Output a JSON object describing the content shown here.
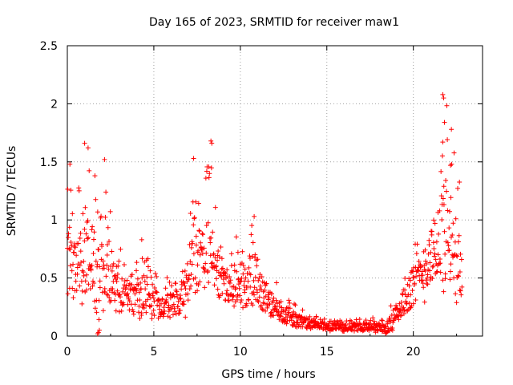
{
  "chart_data": {
    "type": "scatter",
    "title": "Day 165 of 2023, SRMTID for receiver maw1",
    "xlabel": "GPS time / hours",
    "ylabel": "SRMTID / TECUs",
    "xlim": [
      0,
      24
    ],
    "ylim": [
      0,
      2.5
    ],
    "x_ticks": [
      0,
      5,
      10,
      15,
      20
    ],
    "x_tick_labels": [
      "0",
      "5",
      "10",
      "15",
      "20"
    ],
    "y_ticks": [
      0,
      0.5,
      1,
      1.5,
      2,
      2.5
    ],
    "y_tick_labels": [
      "0",
      "0.5",
      "1",
      "1.5",
      "2",
      "2.5"
    ],
    "grid": true,
    "marker": "+",
    "series": [
      {
        "name": "SRMTID",
        "color": "#ff0000",
        "envelope": {
          "x": [
            0.0,
            0.5,
            1.0,
            1.3,
            1.8,
            2.2,
            2.7,
            3.5,
            4.0,
            4.5,
            5.0,
            6.0,
            6.8,
            7.3,
            7.8,
            8.2,
            8.6,
            9.2,
            10.0,
            10.8,
            11.5,
            12.5,
            13.5,
            14.5,
            15.5,
            16.5,
            17.5,
            18.4,
            18.8,
            19.5,
            20.0,
            20.5,
            21.0,
            21.5,
            21.9,
            22.3,
            22.8
          ],
          "low": [
            0.2,
            0.2,
            0.3,
            0.3,
            0.0,
            0.2,
            0.2,
            0.15,
            0.15,
            0.15,
            0.15,
            0.15,
            0.15,
            0.3,
            0.3,
            0.3,
            0.3,
            0.2,
            0.2,
            0.2,
            0.15,
            0.1,
            0.05,
            0.05,
            0.04,
            0.04,
            0.04,
            0.0,
            0.03,
            0.1,
            0.2,
            0.25,
            0.3,
            0.3,
            0.3,
            0.25,
            0.25
          ],
          "high": [
            1.5,
            1.1,
            1.65,
            1.6,
            1.25,
            1.5,
            0.9,
            0.6,
            0.65,
            0.85,
            0.55,
            0.5,
            0.65,
            1.55,
            1.2,
            1.7,
            1.1,
            0.75,
            0.9,
            1.05,
            0.55,
            0.4,
            0.25,
            0.16,
            0.15,
            0.14,
            0.16,
            0.15,
            0.3,
            0.55,
            0.85,
            0.8,
            1.25,
            1.5,
            2.1,
            1.8,
            1.2
          ],
          "center": [
            0.55,
            0.6,
            0.75,
            0.7,
            0.5,
            0.6,
            0.45,
            0.35,
            0.3,
            0.35,
            0.28,
            0.25,
            0.35,
            0.75,
            0.6,
            0.75,
            0.55,
            0.45,
            0.45,
            0.5,
            0.3,
            0.2,
            0.12,
            0.09,
            0.08,
            0.08,
            0.08,
            0.06,
            0.15,
            0.3,
            0.45,
            0.55,
            0.7,
            0.8,
            0.9,
            0.7,
            0.5
          ]
        },
        "highlights": [
          {
            "x": 21.7,
            "y": 2.08
          },
          {
            "x": 21.75,
            "y": 2.05
          },
          {
            "x": 21.8,
            "y": 1.84
          },
          {
            "x": 22.2,
            "y": 1.78
          },
          {
            "x": 21.7,
            "y": 1.67
          },
          {
            "x": 8.3,
            "y": 1.68
          },
          {
            "x": 8.35,
            "y": 1.66
          },
          {
            "x": 1.0,
            "y": 1.66
          },
          {
            "x": 1.2,
            "y": 1.62
          },
          {
            "x": 0.15,
            "y": 1.48
          },
          {
            "x": 7.3,
            "y": 1.53
          },
          {
            "x": 2.15,
            "y": 1.52
          },
          {
            "x": 22.15,
            "y": 1.47
          },
          {
            "x": 10.8,
            "y": 1.03
          },
          {
            "x": 4.3,
            "y": 0.83
          },
          {
            "x": 1.8,
            "y": 0.03
          },
          {
            "x": 1.85,
            "y": 0.05
          },
          {
            "x": 1.75,
            "y": 0.02
          }
        ]
      }
    ]
  }
}
